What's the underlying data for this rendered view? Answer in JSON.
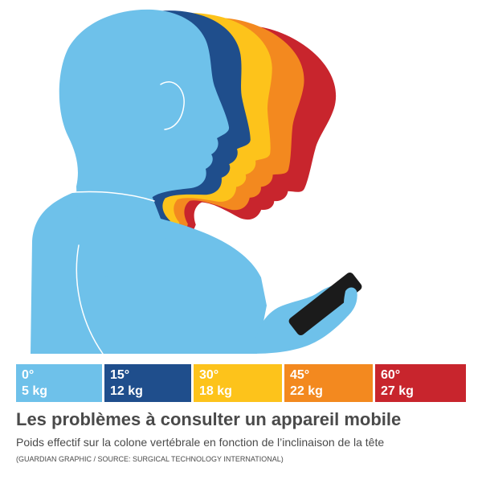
{
  "legend": [
    {
      "angle": "0°",
      "weight": "5 kg",
      "color": "#6ec1ea"
    },
    {
      "angle": "15°",
      "weight": "12 kg",
      "color": "#1f4e8c"
    },
    {
      "angle": "30°",
      "weight": "18 kg",
      "color": "#fdc31b"
    },
    {
      "angle": "45°",
      "weight": "22 kg",
      "color": "#f3891f"
    },
    {
      "angle": "60°",
      "weight": "27 kg",
      "color": "#c8252d"
    }
  ],
  "illustration": {
    "phone_color": "#1b1b1b",
    "outline_color": "#ffffff"
  },
  "title": "Les problèmes à consulter un appareil mobile",
  "subtitle": "Poids effectif sur la colone vertébrale en fonction de l’inclinaison de la tête",
  "source": "(GUARDIAN GRAPHIC / SOURCE: SURGICAL TECHNOLOGY INTERNATIONAL)",
  "text_color": "#4a4a4a"
}
